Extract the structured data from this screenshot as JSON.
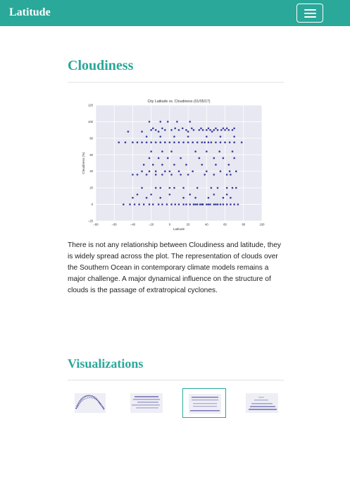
{
  "navbar": {
    "brand": "Latitude",
    "toggler_icon": "hamburger-icon"
  },
  "section": {
    "title": "Cloudiness"
  },
  "chart_data": {
    "type": "scatter",
    "title": "City Latitude vs. Cloudiness (01/05/17)",
    "xlabel": "Latitude",
    "ylabel": "Cloudiness (%)",
    "xlim": [
      -80,
      100
    ],
    "ylim": [
      -20,
      120
    ],
    "xticks": [
      -80,
      -60,
      -40,
      -20,
      0,
      20,
      40,
      60,
      80,
      100
    ],
    "yticks": [
      -20,
      0,
      20,
      40,
      60,
      80,
      100,
      120
    ],
    "grid": true,
    "marker_color": "#1e1f8a",
    "background_color": "#e7e8f1",
    "points": [
      [
        -50,
        0
      ],
      [
        -43,
        0
      ],
      [
        -38,
        0
      ],
      [
        -33,
        0
      ],
      [
        -28,
        0
      ],
      [
        -22,
        0
      ],
      [
        -18,
        0
      ],
      [
        -12,
        0
      ],
      [
        -8,
        0
      ],
      [
        -3,
        0
      ],
      [
        2,
        0
      ],
      [
        6,
        0
      ],
      [
        10,
        0
      ],
      [
        15,
        0
      ],
      [
        18,
        0
      ],
      [
        22,
        0
      ],
      [
        26,
        0
      ],
      [
        30,
        0
      ],
      [
        33,
        0
      ],
      [
        36,
        0
      ],
      [
        40,
        0
      ],
      [
        44,
        0
      ],
      [
        48,
        0
      ],
      [
        52,
        0
      ],
      [
        55,
        0
      ],
      [
        58,
        0
      ],
      [
        62,
        0
      ],
      [
        66,
        0
      ],
      [
        70,
        0
      ],
      [
        74,
        0
      ],
      [
        28,
        0
      ],
      [
        35,
        0
      ],
      [
        42,
        0
      ],
      [
        50,
        0
      ],
      [
        -40,
        8
      ],
      [
        -25,
        8
      ],
      [
        -10,
        8
      ],
      [
        15,
        8
      ],
      [
        28,
        8
      ],
      [
        42,
        8
      ],
      [
        58,
        8
      ],
      [
        66,
        8
      ],
      [
        -35,
        12
      ],
      [
        -20,
        12
      ],
      [
        0,
        12
      ],
      [
        22,
        12
      ],
      [
        48,
        12
      ],
      [
        62,
        12
      ],
      [
        -30,
        20
      ],
      [
        -15,
        20
      ],
      [
        -10,
        20
      ],
      [
        0,
        20
      ],
      [
        5,
        20
      ],
      [
        15,
        20
      ],
      [
        30,
        20
      ],
      [
        45,
        20
      ],
      [
        52,
        20
      ],
      [
        62,
        20
      ],
      [
        68,
        20
      ],
      [
        72,
        20
      ],
      [
        -40,
        36
      ],
      [
        -35,
        36
      ],
      [
        -25,
        36
      ],
      [
        -15,
        36
      ],
      [
        -8,
        36
      ],
      [
        2,
        36
      ],
      [
        12,
        36
      ],
      [
        20,
        36
      ],
      [
        38,
        36
      ],
      [
        48,
        36
      ],
      [
        62,
        36
      ],
      [
        66,
        36
      ],
      [
        -30,
        40
      ],
      [
        -22,
        40
      ],
      [
        -15,
        40
      ],
      [
        -5,
        40
      ],
      [
        0,
        40
      ],
      [
        10,
        40
      ],
      [
        25,
        40
      ],
      [
        40,
        40
      ],
      [
        55,
        40
      ],
      [
        65,
        40
      ],
      [
        72,
        40
      ],
      [
        -28,
        48
      ],
      [
        -18,
        48
      ],
      [
        -8,
        48
      ],
      [
        5,
        48
      ],
      [
        18,
        48
      ],
      [
        35,
        48
      ],
      [
        50,
        48
      ],
      [
        64,
        48
      ],
      [
        -22,
        56
      ],
      [
        -12,
        56
      ],
      [
        -2,
        56
      ],
      [
        12,
        56
      ],
      [
        32,
        56
      ],
      [
        48,
        56
      ],
      [
        58,
        56
      ],
      [
        70,
        56
      ],
      [
        -20,
        64
      ],
      [
        -8,
        64
      ],
      [
        2,
        64
      ],
      [
        28,
        64
      ],
      [
        40,
        64
      ],
      [
        54,
        64
      ],
      [
        68,
        64
      ],
      [
        -35,
        75
      ],
      [
        -25,
        75
      ],
      [
        -15,
        75
      ],
      [
        -5,
        75
      ],
      [
        5,
        75
      ],
      [
        15,
        75
      ],
      [
        25,
        75
      ],
      [
        35,
        75
      ],
      [
        45,
        75
      ],
      [
        55,
        75
      ],
      [
        65,
        75
      ],
      [
        -55,
        75
      ],
      [
        -48,
        75
      ],
      [
        -40,
        75
      ],
      [
        -30,
        75
      ],
      [
        -20,
        75
      ],
      [
        -10,
        75
      ],
      [
        0,
        75
      ],
      [
        10,
        75
      ],
      [
        20,
        75
      ],
      [
        30,
        75
      ],
      [
        38,
        75
      ],
      [
        42,
        75
      ],
      [
        50,
        75
      ],
      [
        60,
        75
      ],
      [
        70,
        75
      ],
      [
        78,
        75
      ],
      [
        -25,
        82
      ],
      [
        -10,
        82
      ],
      [
        5,
        82
      ],
      [
        20,
        82
      ],
      [
        40,
        82
      ],
      [
        55,
        82
      ],
      [
        70,
        82
      ],
      [
        -20,
        90
      ],
      [
        -15,
        90
      ],
      [
        -5,
        90
      ],
      [
        2,
        90
      ],
      [
        10,
        90
      ],
      [
        18,
        90
      ],
      [
        26,
        90
      ],
      [
        32,
        90
      ],
      [
        36,
        90
      ],
      [
        40,
        90
      ],
      [
        44,
        90
      ],
      [
        48,
        90
      ],
      [
        52,
        90
      ],
      [
        56,
        90
      ],
      [
        60,
        90
      ],
      [
        64,
        90
      ],
      [
        68,
        90
      ],
      [
        -18,
        92
      ],
      [
        -8,
        92
      ],
      [
        6,
        92
      ],
      [
        14,
        92
      ],
      [
        24,
        92
      ],
      [
        34,
        92
      ],
      [
        42,
        92
      ],
      [
        50,
        92
      ],
      [
        58,
        92
      ],
      [
        62,
        92
      ],
      [
        70,
        92
      ],
      [
        -45,
        88
      ],
      [
        -30,
        88
      ],
      [
        -12,
        88
      ],
      [
        20,
        88
      ],
      [
        46,
        88
      ],
      [
        -22,
        100
      ],
      [
        -10,
        100
      ],
      [
        -2,
        100
      ],
      [
        8,
        100
      ],
      [
        22,
        100
      ]
    ]
  },
  "description": "There is not any relationship between Cloudiness and latitude, they is widely spread across the plot. The representation of clouds over the Southern Ocean in contemporary climate models remains a major challenge. A major dynamical influence on the structure of clouds is the passage of extratropical cyclones.",
  "visualizations": {
    "title": "Visualizations",
    "thumbnails": [
      {
        "name": "temperature-thumbnail",
        "active": false
      },
      {
        "name": "humidity-thumbnail",
        "active": false
      },
      {
        "name": "cloudiness-thumbnail",
        "active": true
      },
      {
        "name": "wind-speed-thumbnail",
        "active": false
      }
    ]
  }
}
